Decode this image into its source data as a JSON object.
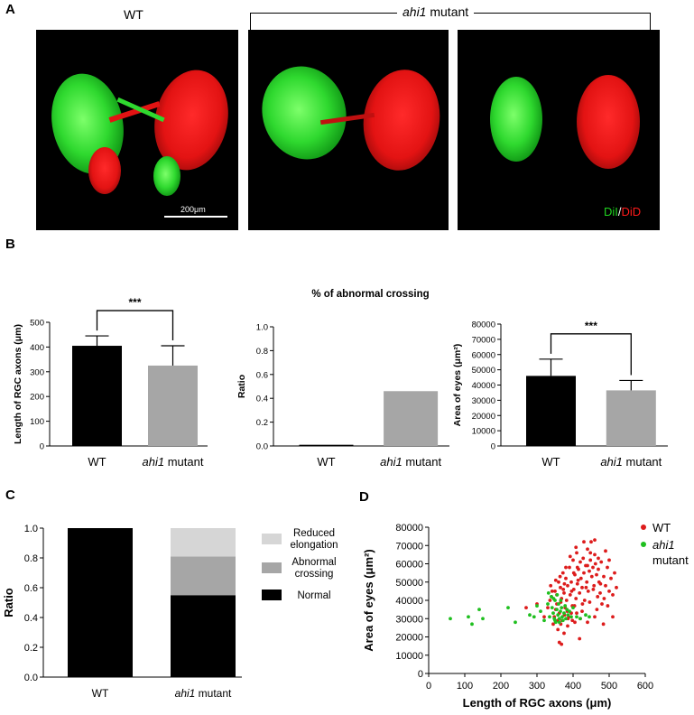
{
  "panelA": {
    "letter": "A",
    "label_wt": "WT",
    "label_mutant_italic": "ahi1",
    "label_mutant_rest": " mutant",
    "scale_bar": "200μm",
    "stain_dil": "DiI",
    "stain_sep": "/",
    "stain_did": "DiD",
    "colors": {
      "dil": "#1fd41f",
      "did": "#ff1a1a"
    }
  },
  "panelB": {
    "letter": "B",
    "charts": [
      {
        "type": "bar",
        "categories": [
          "WT",
          "ahi1 mutant"
        ],
        "values": [
          405,
          325
        ],
        "errors": [
          40,
          80
        ],
        "ylabel": "Length of RGC axons (μm)",
        "ylim": [
          0,
          500
        ],
        "yticks": [
          0,
          100,
          200,
          300,
          400,
          500
        ],
        "significance": "***",
        "colors": [
          "#000000",
          "#a6a6a6"
        ]
      },
      {
        "type": "bar",
        "title": "% of abnormal crossing",
        "categories": [
          "WT",
          "ahi1 mutant"
        ],
        "values": [
          0.01,
          0.46
        ],
        "ylabel": "Ratio",
        "ylim": [
          0,
          1.0
        ],
        "yticks": [
          "0.0",
          "0.2",
          "0.4",
          "0.6",
          "0.8",
          "1.0"
        ],
        "colors": [
          "#000000",
          "#a6a6a6"
        ]
      },
      {
        "type": "bar",
        "categories": [
          "WT",
          "ahi1 mutant"
        ],
        "values": [
          46000,
          36500
        ],
        "errors": [
          11000,
          6500
        ],
        "ylabel": "Area of eyes (μm²)",
        "ylim": [
          0,
          80000
        ],
        "yticks": [
          "0",
          "10000",
          "20000",
          "30000",
          "40000",
          "50000",
          "60000",
          "70000",
          "80000"
        ],
        "significance": "***",
        "colors": [
          "#000000",
          "#a6a6a6"
        ]
      }
    ]
  },
  "panelC": {
    "letter": "C",
    "chart_data": {
      "type": "bar",
      "stacked": true,
      "categories": [
        "WT",
        "ahi1 mutant"
      ],
      "series": [
        {
          "name": "Normal",
          "values": [
            1.0,
            0.55
          ],
          "color": "#000000"
        },
        {
          "name": "Abnormal crossing",
          "values": [
            0.0,
            0.26
          ],
          "color": "#a6a6a6"
        },
        {
          "name": "Reduced elongation",
          "values": [
            0.0,
            0.19
          ],
          "color": "#d6d6d6"
        }
      ],
      "legend_text": [
        [
          "Reduced",
          "elongation"
        ],
        [
          "Abnormal",
          "crossing"
        ],
        [
          "Normal"
        ]
      ],
      "ylabel": "Ratio",
      "ylim": [
        0,
        1.0
      ],
      "yticks": [
        "0.0",
        "0.2",
        "0.4",
        "0.6",
        "0.8",
        "1.0"
      ]
    }
  },
  "panelD": {
    "letter": "D",
    "chart_data": {
      "type": "scatter",
      "xlabel": "Length of RGC axons (μm)",
      "ylabel": "Area of eyes (μm²)",
      "xlim": [
        0,
        600
      ],
      "ylim": [
        0,
        80000
      ],
      "xticks": [
        0,
        100,
        200,
        300,
        400,
        500,
        600
      ],
      "yticks": [
        "0",
        "10000",
        "20000",
        "30000",
        "40000",
        "50000",
        "60000",
        "70000",
        "80000"
      ],
      "legend": [
        {
          "name": "WT",
          "color": "#dd1c1c"
        },
        {
          "name": "ahi1 mutant",
          "color": "#1fbf1f"
        }
      ],
      "series": [
        {
          "name": "WT",
          "color": "#dd1c1c",
          "points": [
            [
              340,
              42000
            ],
            [
              350,
              45000
            ],
            [
              355,
              38000
            ],
            [
              360,
              50000
            ],
            [
              362,
              33000
            ],
            [
              365,
              47000
            ],
            [
              368,
              41000
            ],
            [
              370,
              29000
            ],
            [
              372,
              55000
            ],
            [
              375,
              44000
            ],
            [
              378,
              36000
            ],
            [
              380,
              52000
            ],
            [
              382,
              40000
            ],
            [
              385,
              48000
            ],
            [
              388,
              31000
            ],
            [
              390,
              58000
            ],
            [
              392,
              43000
            ],
            [
              395,
              50000
            ],
            [
              398,
              37000
            ],
            [
              400,
              62000
            ],
            [
              402,
              46000
            ],
            [
              405,
              54000
            ],
            [
              408,
              41000
            ],
            [
              410,
              66000
            ],
            [
              412,
              49000
            ],
            [
              415,
              57000
            ],
            [
              418,
              44000
            ],
            [
              420,
              61000
            ],
            [
              422,
              52000
            ],
            [
              425,
              47000
            ],
            [
              428,
              63000
            ],
            [
              430,
              55000
            ],
            [
              432,
              40000
            ],
            [
              435,
              59000
            ],
            [
              438,
              50000
            ],
            [
              440,
              68000
            ],
            [
              442,
              45000
            ],
            [
              445,
              56000
            ],
            [
              448,
              62000
            ],
            [
              450,
              72000
            ],
            [
              452,
              53000
            ],
            [
              455,
              58000
            ],
            [
              458,
              48000
            ],
            [
              460,
              65000
            ],
            [
              462,
              60000
            ],
            [
              465,
              54000
            ],
            [
              468,
              42000
            ],
            [
              470,
              57000
            ],
            [
              472,
              50000
            ],
            [
              475,
              44000
            ],
            [
              478,
              61000
            ],
            [
              480,
              38000
            ],
            [
              485,
              53000
            ],
            [
              490,
              48000
            ],
            [
              495,
              58000
            ],
            [
              500,
              45000
            ],
            [
              505,
              52000
            ],
            [
              510,
              43000
            ],
            [
              515,
              55000
            ],
            [
              520,
              47000
            ],
            [
              345,
              27000
            ],
            [
              358,
              24000
            ],
            [
              362,
              17000
            ],
            [
              368,
              16000
            ],
            [
              375,
              22000
            ],
            [
              385,
              26000
            ],
            [
              395,
              33000
            ],
            [
              405,
              28000
            ],
            [
              418,
              19000
            ],
            [
              425,
              34000
            ],
            [
              380,
              58000
            ],
            [
              392,
              64000
            ],
            [
              408,
              69000
            ],
            [
              430,
              72000
            ],
            [
              448,
              66000
            ],
            [
              470,
              63000
            ],
            [
              330,
              36000
            ],
            [
              320,
              31000
            ],
            [
              338,
              48000
            ],
            [
              352,
              35000
            ],
            [
              300,
              38000
            ],
            [
              270,
              36000
            ],
            [
              355,
              43000
            ],
            [
              366,
              39000
            ],
            [
              373,
              46000
            ],
            [
              384,
              34000
            ],
            [
              396,
              45000
            ],
            [
              404,
              37000
            ],
            [
              414,
              51000
            ],
            [
              426,
              38000
            ],
            [
              436,
              47000
            ],
            [
              446,
              39000
            ],
            [
              456,
              46000
            ],
            [
              466,
              35000
            ],
            [
              476,
              49000
            ],
            [
              486,
              41000
            ],
            [
              496,
              37000
            ],
            [
              510,
              31000
            ],
            [
              500,
              62000
            ],
            [
              490,
              67000
            ],
            [
              460,
              73000
            ],
            [
              440,
              59000
            ],
            [
              412,
              58000
            ],
            [
              402,
              55000
            ],
            [
              376,
              49000
            ],
            [
              364,
              53000
            ],
            [
              352,
              51000
            ],
            [
              342,
              45000
            ],
            [
              336,
              40000
            ],
            [
              348,
              31000
            ],
            [
              358,
              29000
            ],
            [
              366,
              27000
            ],
            [
              376,
              32000
            ],
            [
              386,
              30000
            ],
            [
              398,
              29000
            ],
            [
              410,
              33000
            ],
            [
              420,
              30000
            ],
            [
              440,
              28000
            ],
            [
              460,
              31000
            ],
            [
              484,
              27000
            ]
          ]
        },
        {
          "name": "ahi1 mutant",
          "color": "#1fbf1f",
          "points": [
            [
              60,
              30000
            ],
            [
              110,
              31000
            ],
            [
              120,
              27000
            ],
            [
              140,
              35000
            ],
            [
              150,
              30000
            ],
            [
              220,
              36000
            ],
            [
              240,
              28000
            ],
            [
              280,
              32000
            ],
            [
              310,
              34000
            ],
            [
              320,
              29000
            ],
            [
              330,
              38000
            ],
            [
              335,
              31000
            ],
            [
              340,
              42000
            ],
            [
              342,
              36000
            ],
            [
              345,
              33000
            ],
            [
              348,
              30000
            ],
            [
              350,
              40000
            ],
            [
              352,
              28000
            ],
            [
              355,
              35000
            ],
            [
              358,
              32000
            ],
            [
              360,
              38000
            ],
            [
              362,
              30000
            ],
            [
              365,
              34000
            ],
            [
              368,
              36000
            ],
            [
              370,
              31000
            ],
            [
              372,
              29000
            ],
            [
              375,
              33000
            ],
            [
              378,
              37000
            ],
            [
              380,
              30000
            ],
            [
              383,
              35000
            ],
            [
              386,
              32000
            ],
            [
              390,
              34000
            ],
            [
              395,
              31000
            ],
            [
              400,
              36000
            ],
            [
              410,
              31000
            ],
            [
              420,
              30000
            ],
            [
              435,
              32000
            ],
            [
              445,
              31000
            ],
            [
              332,
              44000
            ],
            [
              346,
              41000
            ],
            [
              356,
              43000
            ],
            [
              366,
              40000
            ],
            [
              300,
              37000
            ],
            [
              292,
              31000
            ],
            [
              350,
              29000
            ],
            [
              362,
              28000
            ]
          ]
        }
      ]
    }
  }
}
